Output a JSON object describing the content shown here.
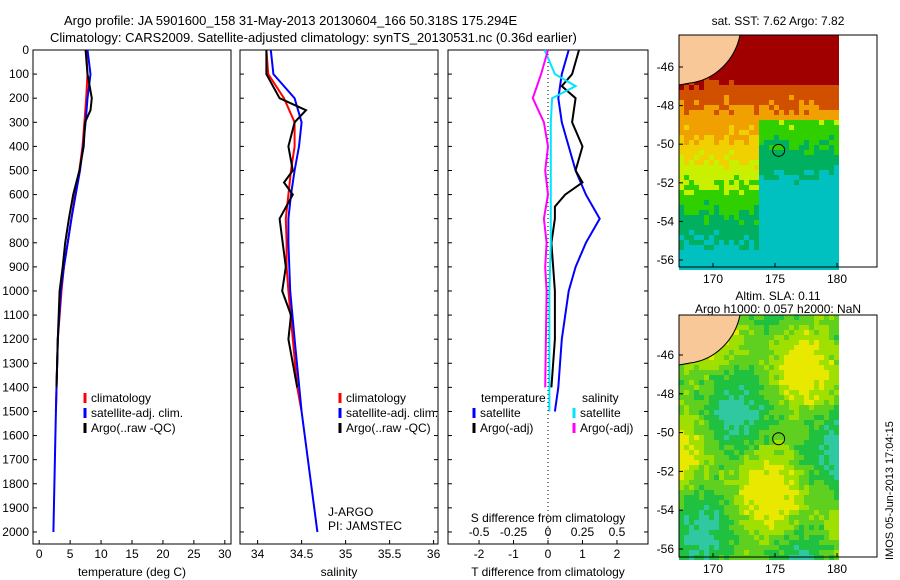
{
  "title_line1": "Argo profile: JA 5901600_158 31-May-2013 20130604_166 50.318S 175.294E",
  "title_line2": "Climatology: CARS2009. Satellite-adjusted climatology: synTS_20130531.nc (0.36d earlier)",
  "colors": {
    "clim": "#ff0000",
    "sat": "#0000ff",
    "argo": "#000000",
    "sat_s": "#00e5ff",
    "argo_s": "#ff00ff"
  },
  "chart_data": [
    {
      "type": "line",
      "xlabel": "temperature (deg C)",
      "xlim": [
        -1,
        31
      ],
      "xticks": [
        0,
        5,
        10,
        15,
        20,
        25,
        30
      ],
      "ylim": [
        0,
        2050
      ],
      "yticks": [
        0,
        100,
        200,
        300,
        400,
        500,
        600,
        700,
        800,
        900,
        1000,
        1100,
        1200,
        1300,
        1400,
        1500,
        1600,
        1700,
        1800,
        1900,
        2000
      ],
      "legend": [
        "climatology",
        "satellite-adj. clim.",
        "Argo(..raw -QC)"
      ],
      "series": [
        {
          "name": "climatology",
          "color": "clim",
          "depth": [
            0,
            100,
            200,
            300,
            400,
            500,
            600,
            700,
            800,
            900,
            1000,
            1200,
            1400,
            1500
          ],
          "values": [
            7.6,
            7.8,
            7.6,
            7.3,
            7.0,
            6.5,
            5.8,
            5.2,
            4.6,
            4.0,
            3.6,
            3.0,
            2.8,
            2.7
          ]
        },
        {
          "name": "satellite-adj. clim.",
          "color": "sat",
          "depth": [
            0,
            100,
            200,
            300,
            400,
            500,
            600,
            700,
            800,
            900,
            1000,
            1200,
            1500,
            2000
          ],
          "values": [
            7.8,
            8.3,
            7.8,
            7.5,
            7.1,
            6.6,
            5.9,
            5.2,
            4.6,
            4.0,
            3.5,
            3.0,
            2.7,
            2.3
          ]
        },
        {
          "name": "Argo(..raw -QC)",
          "color": "argo",
          "depth": [
            0,
            100,
            200,
            250,
            300,
            400,
            500,
            600,
            700,
            800,
            900,
            1000,
            1200,
            1400
          ],
          "values": [
            7.5,
            7.8,
            8.5,
            8.3,
            7.4,
            7.2,
            6.5,
            5.5,
            4.8,
            4.2,
            3.8,
            3.3,
            3.0,
            2.8
          ]
        }
      ]
    },
    {
      "type": "line",
      "xlabel": "salinity",
      "xlim": [
        33.8,
        36.05
      ],
      "xticks": [
        34,
        34.5,
        35,
        35.5,
        36
      ],
      "ylim": [
        0,
        2050
      ],
      "legend": [
        "climatology",
        "satellite-adj. clim.",
        "Argo(..raw -QC)"
      ],
      "annotation": [
        "J-ARGO",
        "PI: JAMSTEC"
      ],
      "series": [
        {
          "name": "climatology",
          "color": "clim",
          "depth": [
            0,
            100,
            200,
            300,
            400,
            500,
            600,
            700,
            800,
            900,
            1000,
            1200,
            1400,
            1500
          ],
          "values": [
            34.1,
            34.12,
            34.3,
            34.42,
            34.42,
            34.38,
            34.35,
            34.32,
            34.33,
            34.33,
            34.35,
            34.4,
            34.45,
            34.5
          ]
        },
        {
          "name": "satellite-adj. clim.",
          "color": "sat",
          "depth": [
            0,
            100,
            200,
            300,
            400,
            500,
            600,
            700,
            800,
            1000,
            1200,
            1500,
            2000
          ],
          "values": [
            34.15,
            34.18,
            34.42,
            34.5,
            34.47,
            34.42,
            34.38,
            34.35,
            34.35,
            34.37,
            34.42,
            34.5,
            34.68
          ]
        },
        {
          "name": "Argo(..raw -QC)",
          "color": "argo",
          "depth": [
            0,
            100,
            200,
            250,
            300,
            400,
            500,
            550,
            600,
            700,
            900,
            1000,
            1100,
            1200,
            1400
          ],
          "values": [
            34.1,
            34.1,
            34.25,
            34.55,
            34.42,
            34.35,
            34.4,
            34.3,
            34.4,
            34.25,
            34.32,
            34.28,
            34.38,
            34.35,
            34.45
          ]
        }
      ]
    },
    {
      "type": "line",
      "xlabel": "T difference from climatology",
      "xlabel2": "S difference from climatology",
      "xlim": [
        -2.9,
        2.9
      ],
      "xticks": [
        -2,
        -1,
        0,
        1,
        2
      ],
      "xticks2": [
        -0.5,
        -0.25,
        0,
        0.25,
        0.5
      ],
      "ylim": [
        0,
        2050
      ],
      "legend_t_title": "temperature",
      "legend_s_title": "salinity",
      "legend": [
        "satellite",
        "Argo(-adj)",
        "satellite",
        "Argo(-adj)"
      ],
      "series": [
        {
          "name": "T satellite",
          "color": "sat",
          "unit": "T",
          "depth": [
            0,
            100,
            200,
            300,
            400,
            500,
            600,
            700,
            800,
            900,
            1000,
            1200,
            1400,
            1500
          ],
          "values": [
            0.6,
            0.4,
            0.3,
            0.4,
            0.6,
            0.8,
            1.1,
            1.5,
            1.1,
            0.8,
            0.6,
            0.4,
            0.3,
            0.2
          ]
        },
        {
          "name": "T Argo(-adj)",
          "color": "argo",
          "unit": "T",
          "depth": [
            0,
            100,
            150,
            200,
            300,
            400,
            500,
            550,
            600,
            650,
            700,
            800,
            1000,
            1200,
            1400
          ],
          "values": [
            0.9,
            0.7,
            0.4,
            0.8,
            0.7,
            1.0,
            0.8,
            1.0,
            0.5,
            0.2,
            0.2,
            0.1,
            0.2,
            0.2,
            0.1
          ]
        },
        {
          "name": "S satellite",
          "color": "sat_s",
          "unit": "S",
          "depth": [
            0,
            100,
            150,
            200,
            300,
            500,
            800,
            1000,
            1500
          ],
          "values": [
            -0.025,
            0.05,
            0.2,
            0.03,
            0.02,
            0.02,
            0.02,
            0.01,
            0.01
          ]
        },
        {
          "name": "S Argo(-adj)",
          "color": "argo_s",
          "unit": "S",
          "depth": [
            0,
            100,
            200,
            300,
            400,
            500,
            600,
            700,
            800,
            900,
            1000,
            1400
          ],
          "values": [
            0,
            -0.05,
            -0.11,
            -0.03,
            0,
            -0.02,
            0,
            -0.03,
            -0.01,
            -0.02,
            -0.01,
            -0.02
          ]
        }
      ]
    },
    {
      "type": "heatmap",
      "title": "sat. SST: 7.62 Argo: 7.82",
      "lon_ticks": [
        170,
        175,
        180
      ],
      "lat_ticks": [
        -46,
        -48,
        -50,
        -52,
        -54,
        -56
      ],
      "float_lon": 175.294,
      "float_lat": -50.318
    },
    {
      "type": "heatmap",
      "title_line1": "Altim. SLA: 0.11",
      "title_line2": "Argo h1000: 0.057 h2000: NaN",
      "lon_ticks": [
        170,
        175,
        180
      ],
      "lat_ticks": [
        -46,
        -48,
        -50,
        -52,
        -54,
        -56
      ],
      "float_lon": 175.294,
      "float_lat": -50.318
    }
  ],
  "credit": "IMOS 05-Jun-2013 17:04:15"
}
